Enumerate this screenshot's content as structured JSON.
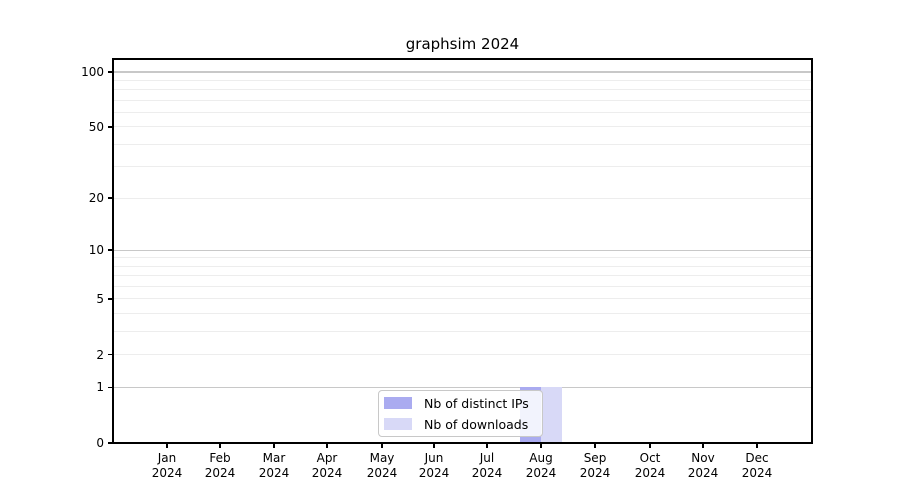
{
  "chart_data": {
    "type": "bar",
    "title": "graphsim 2024",
    "x_categories": [
      "Jan 2024",
      "Feb 2024",
      "Mar 2024",
      "Apr 2024",
      "May 2024",
      "Jun 2024",
      "Jul 2024",
      "Aug 2024",
      "Sep 2024",
      "Oct 2024",
      "Nov 2024",
      "Dec 2024"
    ],
    "series": [
      {
        "name": "Nb of distinct IPs",
        "color": "#aaabf0",
        "values": [
          0,
          0,
          0,
          0,
          0,
          0,
          0,
          1,
          0,
          0,
          0,
          0
        ]
      },
      {
        "name": "Nb of downloads",
        "color": "#d8d9f7",
        "values": [
          0,
          0,
          0,
          0,
          0,
          0,
          0,
          1,
          0,
          0,
          0,
          0
        ]
      }
    ],
    "y_scale": "log1p",
    "ylim": [
      0,
      117.7
    ],
    "y_tick_values": [
      100,
      50,
      20,
      10,
      5,
      2,
      1,
      0
    ],
    "y_major_gridlines": [
      1,
      10,
      100
    ],
    "y_minor_gridlines": [
      2,
      3,
      4,
      5,
      6,
      7,
      8,
      9,
      20,
      30,
      40,
      50,
      60,
      70,
      80,
      90
    ],
    "legend_position": "lower center",
    "grid": true,
    "colors": {
      "background": "#ffffff",
      "axis": "#000000",
      "text": "#000000",
      "major_grid": "#c8c8c8",
      "minor_grid": "#ededed",
      "legend_border": "#c8c8c8"
    }
  }
}
